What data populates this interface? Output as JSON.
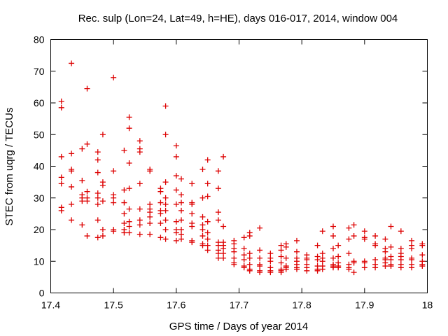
{
  "chart_data": {
    "type": "scatter",
    "title": "Rec. sulp (Lon=24, Lat=49, h=HE), days 016-017, 2014, window 004",
    "xlabel": "GPS time / Days of year 2014",
    "ylabel": "STEC from uqrg / TECUs",
    "xlim": [
      17.4,
      18.0
    ],
    "ylim": [
      0,
      80
    ],
    "x_ticks": [
      17.4,
      17.5,
      17.6,
      17.7,
      17.8,
      17.9,
      18.0
    ],
    "x_tick_labels": [
      "17.4",
      "17.5",
      "17.6",
      "17.7",
      "17.8",
      "17.9",
      "18"
    ],
    "y_ticks": [
      0,
      10,
      20,
      30,
      40,
      50,
      60,
      70,
      80
    ],
    "y_tick_labels": [
      "0",
      "10",
      "20",
      "30",
      "40",
      "50",
      "60",
      "70",
      "80"
    ],
    "grid": false,
    "marker": "+",
    "color": "#dd0000",
    "series": [
      {
        "name": "STEC",
        "points": [
          [
            17.417,
            60.5
          ],
          [
            17.417,
            58.5
          ],
          [
            17.417,
            43
          ],
          [
            17.417,
            36.5
          ],
          [
            17.417,
            34.5
          ],
          [
            17.417,
            27
          ],
          [
            17.417,
            26
          ],
          [
            17.433,
            72.5
          ],
          [
            17.433,
            44
          ],
          [
            17.433,
            39
          ],
          [
            17.433,
            38.5
          ],
          [
            17.433,
            33.5
          ],
          [
            17.433,
            28
          ],
          [
            17.433,
            23
          ],
          [
            17.45,
            45.5
          ],
          [
            17.45,
            35.5
          ],
          [
            17.45,
            31
          ],
          [
            17.45,
            30
          ],
          [
            17.45,
            29
          ],
          [
            17.45,
            21.5
          ],
          [
            17.458,
            64.5
          ],
          [
            17.458,
            47
          ],
          [
            17.458,
            32
          ],
          [
            17.458,
            30
          ],
          [
            17.458,
            29
          ],
          [
            17.458,
            18
          ],
          [
            17.475,
            44.5
          ],
          [
            17.475,
            42
          ],
          [
            17.475,
            38
          ],
          [
            17.475,
            31.5
          ],
          [
            17.475,
            30
          ],
          [
            17.475,
            28
          ],
          [
            17.475,
            23
          ],
          [
            17.475,
            17.5
          ],
          [
            17.483,
            50
          ],
          [
            17.483,
            35
          ],
          [
            17.483,
            34
          ],
          [
            17.483,
            29
          ],
          [
            17.483,
            20
          ],
          [
            17.483,
            18
          ],
          [
            17.5,
            68
          ],
          [
            17.5,
            38.5
          ],
          [
            17.5,
            31
          ],
          [
            17.5,
            30
          ],
          [
            17.5,
            28.5
          ],
          [
            17.5,
            20
          ],
          [
            17.5,
            19.5
          ],
          [
            17.517,
            45
          ],
          [
            17.517,
            32.5
          ],
          [
            17.517,
            28.5
          ],
          [
            17.517,
            25
          ],
          [
            17.517,
            22
          ],
          [
            17.517,
            20
          ],
          [
            17.517,
            19
          ],
          [
            17.525,
            55.5
          ],
          [
            17.525,
            52
          ],
          [
            17.525,
            41
          ],
          [
            17.525,
            33
          ],
          [
            17.525,
            26.5
          ],
          [
            17.525,
            22.5
          ],
          [
            17.525,
            21
          ],
          [
            17.525,
            19
          ],
          [
            17.542,
            48
          ],
          [
            17.542,
            45.5
          ],
          [
            17.542,
            44.5
          ],
          [
            17.542,
            34.5
          ],
          [
            17.542,
            26.5
          ],
          [
            17.542,
            23
          ],
          [
            17.542,
            21.5
          ],
          [
            17.542,
            18.5
          ],
          [
            17.558,
            39
          ],
          [
            17.558,
            38.5
          ],
          [
            17.558,
            28
          ],
          [
            17.558,
            26.5
          ],
          [
            17.558,
            25.5
          ],
          [
            17.558,
            24
          ],
          [
            17.558,
            22
          ],
          [
            17.558,
            18.5
          ],
          [
            17.575,
            33
          ],
          [
            17.575,
            32
          ],
          [
            17.575,
            28.5
          ],
          [
            17.575,
            26
          ],
          [
            17.575,
            25
          ],
          [
            17.575,
            22
          ],
          [
            17.575,
            17.5
          ],
          [
            17.583,
            59
          ],
          [
            17.583,
            50
          ],
          [
            17.583,
            35
          ],
          [
            17.583,
            30
          ],
          [
            17.583,
            28
          ],
          [
            17.583,
            26
          ],
          [
            17.583,
            23
          ],
          [
            17.583,
            20
          ],
          [
            17.583,
            17
          ],
          [
            17.6,
            46.5
          ],
          [
            17.6,
            43
          ],
          [
            17.6,
            37
          ],
          [
            17.6,
            32.5
          ],
          [
            17.6,
            28
          ],
          [
            17.6,
            22.5
          ],
          [
            17.6,
            20
          ],
          [
            17.6,
            19
          ],
          [
            17.6,
            16.5
          ],
          [
            17.608,
            36
          ],
          [
            17.608,
            31
          ],
          [
            17.608,
            28.5
          ],
          [
            17.608,
            26
          ],
          [
            17.608,
            23
          ],
          [
            17.608,
            20
          ],
          [
            17.608,
            18.5
          ],
          [
            17.608,
            17
          ],
          [
            17.625,
            34.5
          ],
          [
            17.625,
            28.5
          ],
          [
            17.625,
            28
          ],
          [
            17.625,
            25
          ],
          [
            17.625,
            22
          ],
          [
            17.625,
            21
          ],
          [
            17.625,
            16.5
          ],
          [
            17.625,
            16
          ],
          [
            17.642,
            39
          ],
          [
            17.642,
            30
          ],
          [
            17.642,
            24
          ],
          [
            17.642,
            21.5
          ],
          [
            17.642,
            20
          ],
          [
            17.642,
            18
          ],
          [
            17.642,
            15.5
          ],
          [
            17.642,
            15
          ],
          [
            17.65,
            42
          ],
          [
            17.65,
            34.5
          ],
          [
            17.65,
            30.5
          ],
          [
            17.65,
            22.5
          ],
          [
            17.65,
            19
          ],
          [
            17.65,
            17
          ],
          [
            17.65,
            15
          ],
          [
            17.65,
            13.5
          ],
          [
            17.667,
            38.5
          ],
          [
            17.667,
            33
          ],
          [
            17.667,
            25.5
          ],
          [
            17.667,
            23
          ],
          [
            17.667,
            16
          ],
          [
            17.667,
            15
          ],
          [
            17.667,
            13.5
          ],
          [
            17.667,
            12.5
          ],
          [
            17.667,
            11
          ],
          [
            17.675,
            43
          ],
          [
            17.675,
            21
          ],
          [
            17.675,
            16
          ],
          [
            17.675,
            15
          ],
          [
            17.675,
            14
          ],
          [
            17.675,
            12.5
          ],
          [
            17.675,
            11
          ],
          [
            17.692,
            16.5
          ],
          [
            17.692,
            15.5
          ],
          [
            17.692,
            14
          ],
          [
            17.692,
            13
          ],
          [
            17.692,
            11
          ],
          [
            17.692,
            9.5
          ],
          [
            17.692,
            9
          ],
          [
            17.708,
            17.5
          ],
          [
            17.708,
            14
          ],
          [
            17.708,
            12
          ],
          [
            17.708,
            10.5
          ],
          [
            17.708,
            8.5
          ],
          [
            17.708,
            8
          ],
          [
            17.717,
            19
          ],
          [
            17.717,
            18
          ],
          [
            17.717,
            12.5
          ],
          [
            17.717,
            11
          ],
          [
            17.717,
            9
          ],
          [
            17.717,
            7.5
          ],
          [
            17.717,
            7
          ],
          [
            17.733,
            20.5
          ],
          [
            17.733,
            13.5
          ],
          [
            17.733,
            11
          ],
          [
            17.733,
            9
          ],
          [
            17.733,
            8.5
          ],
          [
            17.733,
            7
          ],
          [
            17.733,
            6.5
          ],
          [
            17.75,
            12.5
          ],
          [
            17.75,
            11
          ],
          [
            17.75,
            10
          ],
          [
            17.75,
            8
          ],
          [
            17.75,
            7
          ],
          [
            17.75,
            6.5
          ],
          [
            17.767,
            15
          ],
          [
            17.767,
            13.5
          ],
          [
            17.767,
            11.5
          ],
          [
            17.767,
            9.5
          ],
          [
            17.767,
            7.5
          ],
          [
            17.767,
            7
          ],
          [
            17.767,
            6.5
          ],
          [
            17.775,
            15.5
          ],
          [
            17.775,
            14.5
          ],
          [
            17.775,
            11
          ],
          [
            17.775,
            8.5
          ],
          [
            17.775,
            8
          ],
          [
            17.775,
            7.5
          ],
          [
            17.792,
            16.5
          ],
          [
            17.792,
            13
          ],
          [
            17.792,
            11
          ],
          [
            17.792,
            10
          ],
          [
            17.792,
            9
          ],
          [
            17.792,
            8
          ],
          [
            17.792,
            7.5
          ],
          [
            17.808,
            12
          ],
          [
            17.808,
            11
          ],
          [
            17.808,
            10.5
          ],
          [
            17.808,
            9
          ],
          [
            17.808,
            8
          ],
          [
            17.808,
            7
          ],
          [
            17.825,
            15
          ],
          [
            17.825,
            11.5
          ],
          [
            17.825,
            10.5
          ],
          [
            17.825,
            8.5
          ],
          [
            17.825,
            7.5
          ],
          [
            17.825,
            7
          ],
          [
            17.833,
            19.5
          ],
          [
            17.833,
            12.5
          ],
          [
            17.833,
            11
          ],
          [
            17.833,
            10
          ],
          [
            17.833,
            8.5
          ],
          [
            17.833,
            7.5
          ],
          [
            17.85,
            21
          ],
          [
            17.85,
            18
          ],
          [
            17.85,
            14
          ],
          [
            17.85,
            11
          ],
          [
            17.85,
            9
          ],
          [
            17.85,
            8.5
          ],
          [
            17.85,
            8
          ],
          [
            17.858,
            15
          ],
          [
            17.858,
            11.5
          ],
          [
            17.858,
            9.5
          ],
          [
            17.858,
            8.5
          ],
          [
            17.858,
            8
          ],
          [
            17.875,
            20.5
          ],
          [
            17.875,
            17
          ],
          [
            17.875,
            12.5
          ],
          [
            17.875,
            9
          ],
          [
            17.875,
            8
          ],
          [
            17.875,
            7.5
          ],
          [
            17.883,
            21.5
          ],
          [
            17.883,
            18
          ],
          [
            17.883,
            10
          ],
          [
            17.883,
            9.5
          ],
          [
            17.883,
            6.5
          ],
          [
            17.9,
            19.5
          ],
          [
            17.9,
            17.5
          ],
          [
            17.9,
            17
          ],
          [
            17.9,
            10
          ],
          [
            17.9,
            9.5
          ],
          [
            17.9,
            8
          ],
          [
            17.917,
            18
          ],
          [
            17.917,
            15.5
          ],
          [
            17.917,
            15
          ],
          [
            17.917,
            10.5
          ],
          [
            17.917,
            9
          ],
          [
            17.917,
            8
          ],
          [
            17.933,
            17
          ],
          [
            17.933,
            14
          ],
          [
            17.933,
            13
          ],
          [
            17.933,
            11
          ],
          [
            17.933,
            10.5
          ],
          [
            17.933,
            9.5
          ],
          [
            17.933,
            8.5
          ],
          [
            17.942,
            21
          ],
          [
            17.942,
            14.5
          ],
          [
            17.942,
            11.5
          ],
          [
            17.942,
            10.5
          ],
          [
            17.942,
            9
          ],
          [
            17.942,
            8.5
          ],
          [
            17.958,
            19.5
          ],
          [
            17.958,
            14
          ],
          [
            17.958,
            12.5
          ],
          [
            17.958,
            11.5
          ],
          [
            17.958,
            10.5
          ],
          [
            17.958,
            9
          ],
          [
            17.958,
            8
          ],
          [
            17.975,
            16.5
          ],
          [
            17.975,
            15
          ],
          [
            17.975,
            14
          ],
          [
            17.975,
            11
          ],
          [
            17.975,
            10.5
          ],
          [
            17.975,
            9
          ],
          [
            17.975,
            8
          ],
          [
            17.992,
            15.5
          ],
          [
            17.992,
            15
          ],
          [
            17.992,
            12
          ],
          [
            17.992,
            10
          ],
          [
            17.992,
            9
          ],
          [
            17.992,
            8.5
          ]
        ]
      }
    ]
  }
}
